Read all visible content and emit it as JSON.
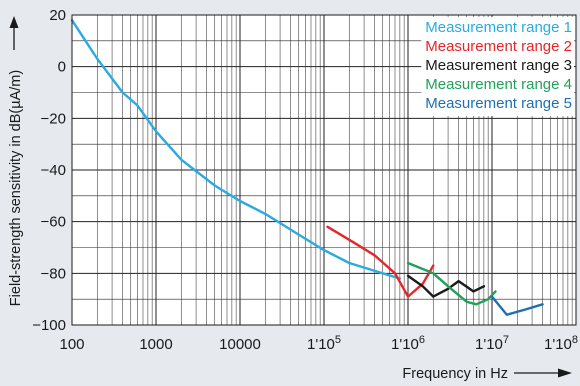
{
  "chart_data": {
    "type": "line",
    "xlabel": "Frequency in Hz",
    "ylabel": "Field-strength sensitivity in dB(µA/m)",
    "x_scale": "log",
    "xlim": [
      100,
      100000000
    ],
    "ylim": [
      -100,
      20
    ],
    "grid": true,
    "legend_position": "top-right",
    "x_tick_labels": [
      {
        "value": 100,
        "label": "100",
        "sup": ""
      },
      {
        "value": 1000,
        "label": "1000",
        "sup": ""
      },
      {
        "value": 10000,
        "label": "10000",
        "sup": ""
      },
      {
        "value": 100000,
        "label": "1'10",
        "sup": "5"
      },
      {
        "value": 1000000,
        "label": "1'10",
        "sup": "6"
      },
      {
        "value": 10000000,
        "label": "1'10",
        "sup": "7"
      },
      {
        "value": 100000000,
        "label": "1'10",
        "sup": "8"
      }
    ],
    "y_tick_labels": [
      {
        "value": 20,
        "label": "20"
      },
      {
        "value": 0,
        "label": "0"
      },
      {
        "value": -20,
        "label": "−20"
      },
      {
        "value": -40,
        "label": "−40"
      },
      {
        "value": -60,
        "label": "−60"
      },
      {
        "value": -80,
        "label": "−80"
      },
      {
        "value": -100,
        "label": "−100"
      }
    ],
    "series": [
      {
        "name": "Measurement range 1",
        "color": "#29abe2",
        "points": [
          [
            100,
            18
          ],
          [
            200,
            3
          ],
          [
            400,
            -10
          ],
          [
            600,
            -15
          ],
          [
            1000,
            -25
          ],
          [
            2000,
            -36
          ],
          [
            5000,
            -46
          ],
          [
            10000,
            -52
          ],
          [
            20000,
            -57
          ],
          [
            50000,
            -65
          ],
          [
            100000,
            -71
          ],
          [
            200000,
            -76
          ],
          [
            500000,
            -80
          ],
          [
            800000,
            -82
          ]
        ]
      },
      {
        "name": "Measurement range 2",
        "color": "#e8252a",
        "points": [
          [
            110000,
            -62
          ],
          [
            200000,
            -67
          ],
          [
            400000,
            -73
          ],
          [
            700000,
            -80
          ],
          [
            1000000,
            -89
          ],
          [
            1500000,
            -84
          ],
          [
            2000000,
            -77
          ]
        ]
      },
      {
        "name": "Measurement range 3",
        "color": "#1a1a1a",
        "points": [
          [
            1000000,
            -81
          ],
          [
            1500000,
            -85
          ],
          [
            2000000,
            -89
          ],
          [
            3000000,
            -86
          ],
          [
            4000000,
            -83
          ],
          [
            6000000,
            -87
          ],
          [
            8000000,
            -85
          ]
        ]
      },
      {
        "name": "Measurement range 4",
        "color": "#21a05a",
        "points": [
          [
            1000000,
            -76
          ],
          [
            2000000,
            -80
          ],
          [
            3000000,
            -85
          ],
          [
            5000000,
            -91
          ],
          [
            6500000,
            -92
          ],
          [
            9000000,
            -90
          ],
          [
            11000000,
            -87
          ]
        ]
      },
      {
        "name": "Measurement range 5",
        "color": "#1f6fb5",
        "points": [
          [
            10000000,
            -89
          ],
          [
            15000000,
            -96
          ],
          [
            25000000,
            -94
          ],
          [
            40000000,
            -92
          ]
        ]
      }
    ]
  }
}
